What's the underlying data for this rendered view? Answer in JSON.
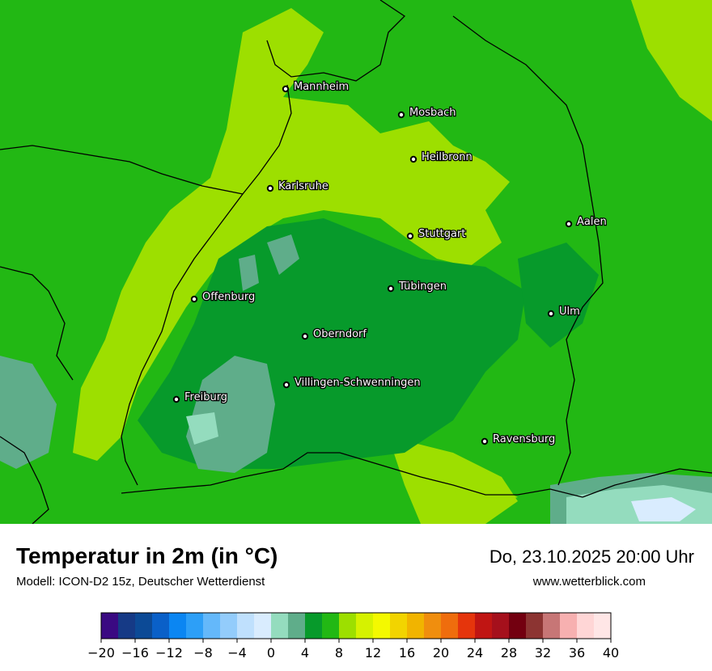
{
  "header": {
    "title": "Temperatur in 2m (in °C)",
    "subtitle": "Modell: ICON-D2 15z, Deutscher Wetterdienst",
    "datetime": "Do, 23.10.2025 20:00 Uhr",
    "website": "www.wetterblick.com"
  },
  "cities": [
    {
      "name": "Mannheim"
    },
    {
      "name": "Mosbach"
    },
    {
      "name": "Heilbronn"
    },
    {
      "name": "Karlsruhe"
    },
    {
      "name": "Aalen"
    },
    {
      "name": "Stuttgart"
    },
    {
      "name": "Tübingen"
    },
    {
      "name": "Offenburg"
    },
    {
      "name": "Ulm"
    },
    {
      "name": "Oberndorf"
    },
    {
      "name": "Villingen-Schwenningen"
    },
    {
      "name": "Freiburg"
    },
    {
      "name": "Ravensburg"
    }
  ],
  "legend": {
    "ticks": [
      "−20",
      "−16",
      "−12",
      "−8",
      "−4",
      "0",
      "4",
      "8",
      "12",
      "16",
      "20",
      "24",
      "28",
      "32",
      "36",
      "40"
    ],
    "min": -20,
    "max": 40,
    "step": 2,
    "colors": [
      "#3a0a82",
      "#163a86",
      "#0c4a96",
      "#0a60c8",
      "#0b86f2",
      "#2d9ff7",
      "#64b8fa",
      "#93ccfb",
      "#bfe0fd",
      "#d9ecfe",
      "#94dcbe",
      "#5fad8a",
      "#079a2b",
      "#22b814",
      "#9ddf00",
      "#d6f200",
      "#f4f900",
      "#f2d400",
      "#f1b400",
      "#f08e0e",
      "#ef6d0d",
      "#e5350c",
      "#c01513",
      "#a5101c",
      "#730010",
      "#8c3432",
      "#c77676",
      "#f7b0b0",
      "#ffd6d6",
      "#ffe6e6"
    ]
  },
  "map_colors": {
    "lowland": "#9ddf00",
    "mid": "#22b814",
    "high": "#079a2b",
    "cool": "#5fad8a",
    "coolest": "#94dcbe",
    "cold": "#d9ecfe"
  }
}
